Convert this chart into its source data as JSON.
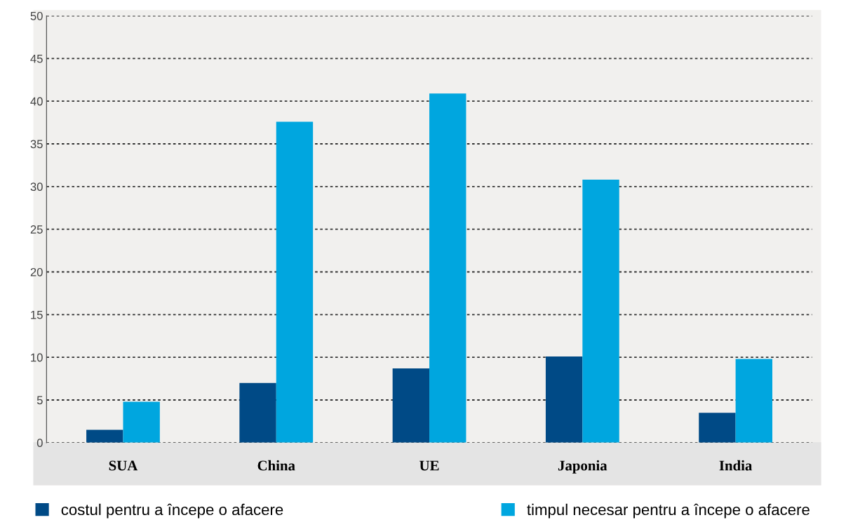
{
  "chart_data": {
    "type": "bar",
    "categories": [
      "SUA",
      "China",
      "UE",
      "Japonia",
      "India"
    ],
    "series": [
      {
        "name": "costul pentru a începe o afacere",
        "color": "#004a86",
        "values": [
          1.5,
          7,
          8.7,
          10.1,
          3.5
        ]
      },
      {
        "name": "timpul necesar pentru a începe o afacere",
        "color": "#00a6df",
        "values": [
          4.8,
          37.6,
          40.9,
          30.8,
          9.8
        ]
      }
    ],
    "ylim": [
      0,
      50
    ],
    "yticks": [
      0,
      5,
      10,
      15,
      20,
      25,
      30,
      35,
      40,
      45,
      50
    ],
    "grid": "y",
    "legend": "bottom"
  }
}
